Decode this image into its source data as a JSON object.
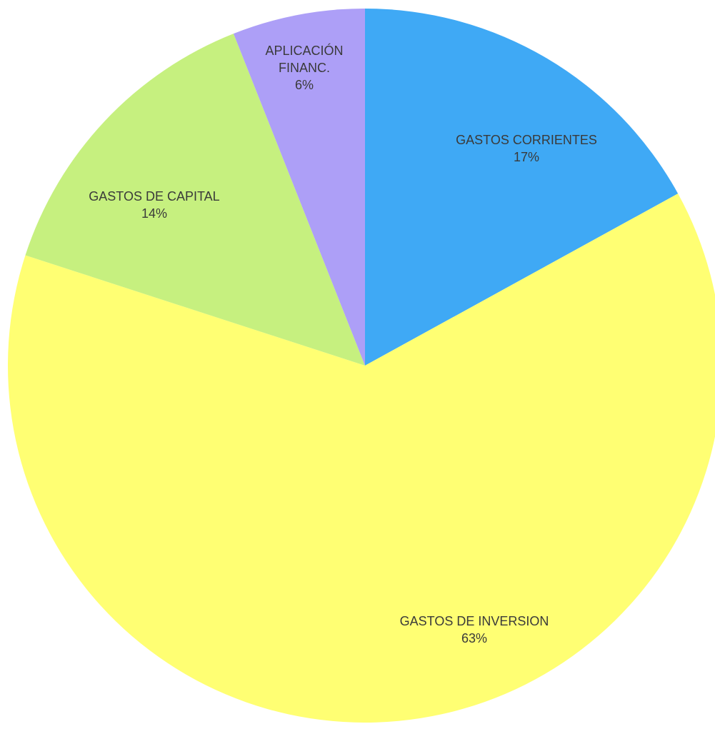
{
  "chart_data": {
    "type": "pie",
    "start_angle_deg": 0,
    "direction": "clockwise",
    "slices": [
      {
        "label": "GASTOS CORRIENTES",
        "value": 17,
        "display": "17%",
        "color": "#3fa9f5"
      },
      {
        "label": "GASTOS DE INVERSION",
        "value": 63,
        "display": "63%",
        "color": "#ffff73"
      },
      {
        "label": "GASTOS DE CAPITAL",
        "value": 14,
        "display": "14%",
        "color": "#c6f07f"
      },
      {
        "label": "APLICACIÓN FINANC.",
        "value": 6,
        "display": "6%",
        "color": "#ad9ff7"
      }
    ]
  }
}
